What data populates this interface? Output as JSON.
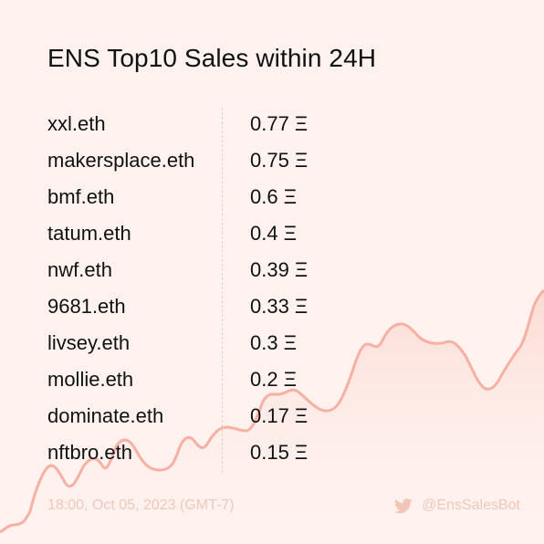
{
  "title": "ENS Top10 Sales within 24H",
  "sales": [
    {
      "name": "xxl.eth",
      "price": "0.77 Ξ"
    },
    {
      "name": "makersplace.eth",
      "price": "0.75 Ξ"
    },
    {
      "name": "bmf.eth",
      "price": "0.6 Ξ"
    },
    {
      "name": "tatum.eth",
      "price": "0.4 Ξ"
    },
    {
      "name": "nwf.eth",
      "price": "0.39 Ξ"
    },
    {
      "name": "9681.eth",
      "price": "0.33 Ξ"
    },
    {
      "name": "livsey.eth",
      "price": "0.3 Ξ"
    },
    {
      "name": "mollie.eth",
      "price": "0.2 Ξ"
    },
    {
      "name": "dominate.eth",
      "price": "0.17 Ξ"
    },
    {
      "name": "nftbro.eth",
      "price": "0.15 Ξ"
    }
  ],
  "footer": {
    "timestamp": "18:00, Oct 05, 2023 (GMT-7)",
    "handle": "@EnsSalesBot"
  },
  "colors": {
    "background": "#fff2ef",
    "wave_line": "#f7b0a3",
    "footer_text": "#f2c7ba"
  },
  "icons": {
    "twitter": "twitter-icon"
  }
}
